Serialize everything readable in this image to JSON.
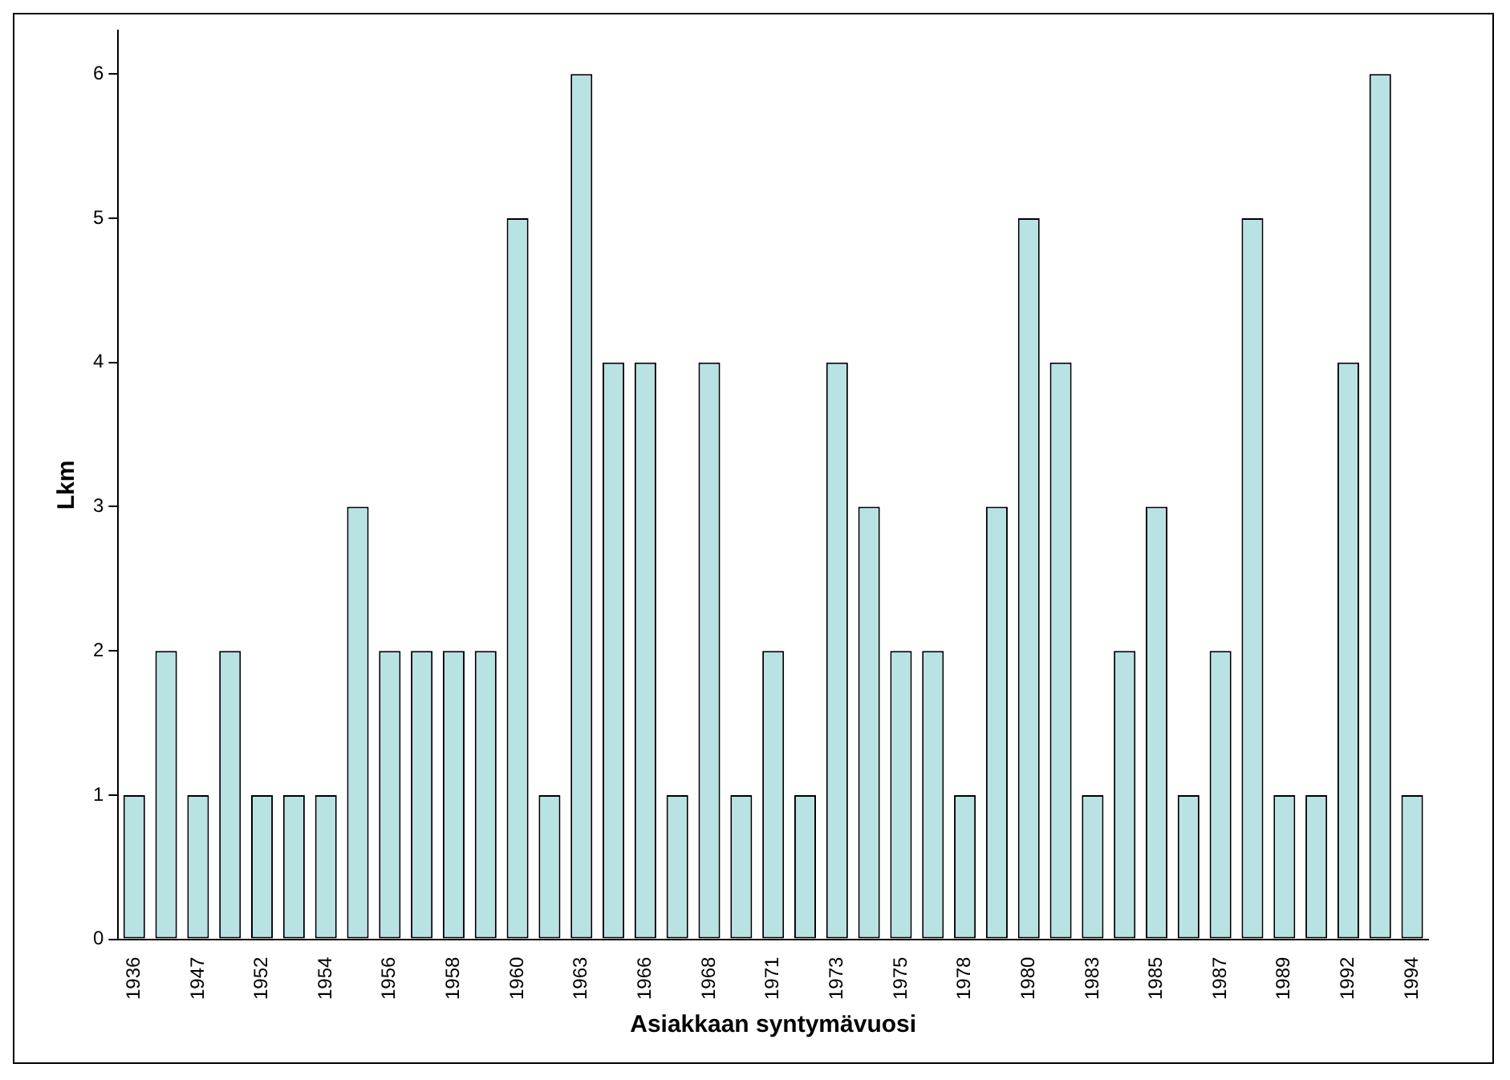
{
  "chart_data": {
    "type": "bar",
    "xlabel": "Asiakkaan syntymävuosi",
    "ylabel": "Lkm",
    "categories": [
      "1936",
      null,
      "1947",
      null,
      "1952",
      null,
      "1954",
      null,
      "1956",
      null,
      "1958",
      null,
      "1960",
      null,
      "1963",
      null,
      "1966",
      null,
      "1968",
      null,
      "1971",
      null,
      "1973",
      null,
      "1975",
      null,
      "1978",
      null,
      "1980",
      null,
      "1983",
      null,
      "1985",
      null,
      "1987",
      null,
      "1989",
      null,
      "1992",
      null,
      "1994"
    ],
    "values": [
      1,
      2,
      1,
      2,
      1,
      1,
      1,
      3,
      2,
      2,
      2,
      2,
      5,
      1,
      6,
      4,
      4,
      1,
      4,
      1,
      2,
      1,
      4,
      3,
      2,
      2,
      1,
      3,
      5,
      4,
      1,
      2,
      3,
      1,
      2,
      5,
      1,
      1,
      4,
      6,
      1
    ],
    "color": "#b9e3e3",
    "ylim": [
      0,
      6.3
    ],
    "yticks": [
      0,
      1,
      2,
      3,
      4,
      5,
      6
    ],
    "grid": false,
    "legend": false
  }
}
